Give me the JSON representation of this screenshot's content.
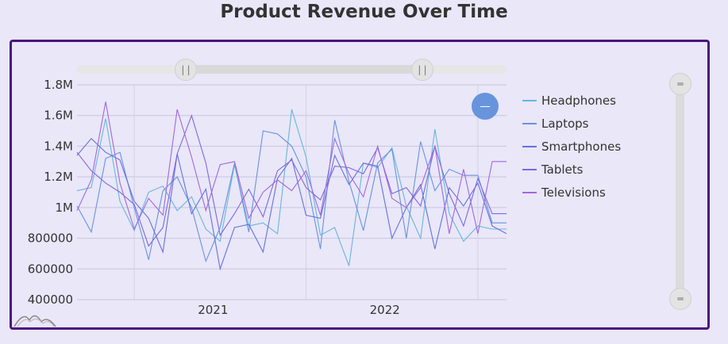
{
  "title": "Product Revenue Over Time",
  "chart_data": {
    "type": "line",
    "title": "Product Revenue Over Time",
    "xlabel": "",
    "ylabel": "",
    "x": [
      "2020-09",
      "2020-10",
      "2020-11",
      "2020-12",
      "2021-01",
      "2021-02",
      "2021-03",
      "2021-04",
      "2021-05",
      "2021-06",
      "2021-07",
      "2021-08",
      "2021-09",
      "2021-10",
      "2021-11",
      "2021-12",
      "2022-01",
      "2022-02",
      "2022-03",
      "2022-04",
      "2022-05",
      "2022-06",
      "2022-07",
      "2022-08",
      "2022-09",
      "2022-10",
      "2022-11",
      "2022-12",
      "2023-01",
      "2023-02",
      "2023-03"
    ],
    "xticks": [
      "2021",
      "2022"
    ],
    "ylim": [
      400000,
      1800000
    ],
    "yticks": [
      400000,
      600000,
      800000,
      1000000,
      1200000,
      1400000,
      1600000,
      1800000
    ],
    "ytick_labels": [
      "400000",
      "600000",
      "800000",
      "1M",
      "1.2M",
      "1.4M",
      "1.6M",
      "1.8M"
    ],
    "grid": true,
    "legend": "right",
    "series": [
      {
        "name": "Headphones",
        "color": "#67b7dc",
        "values": [
          1110000,
          1130000,
          1580000,
          1040000,
          850000,
          1100000,
          1140000,
          980000,
          1070000,
          860000,
          780000,
          1280000,
          880000,
          900000,
          830000,
          1640000,
          1330000,
          820000,
          870000,
          620000,
          1290000,
          1260000,
          1390000,
          1010000,
          800000,
          1510000,
          960000,
          780000,
          880000,
          860000,
          860000
        ]
      },
      {
        "name": "Laptops",
        "color": "#6794dc",
        "values": [
          1010000,
          840000,
          1320000,
          1360000,
          1000000,
          660000,
          1110000,
          1200000,
          1000000,
          650000,
          870000,
          1290000,
          840000,
          1500000,
          1480000,
          1400000,
          1200000,
          730000,
          1570000,
          1170000,
          850000,
          1290000,
          1380000,
          800000,
          1430000,
          1110000,
          1250000,
          1210000,
          1210000,
          900000,
          900000
        ]
      },
      {
        "name": "Smartphones",
        "color": "#6771dc",
        "values": [
          1340000,
          1450000,
          1360000,
          1310000,
          1040000,
          930000,
          710000,
          1350000,
          960000,
          1120000,
          600000,
          870000,
          890000,
          710000,
          1190000,
          1320000,
          950000,
          930000,
          1340000,
          1150000,
          1290000,
          1270000,
          800000,
          1000000,
          1150000,
          730000,
          1130000,
          1010000,
          1160000,
          880000,
          830000
        ]
      },
      {
        "name": "Tablets",
        "color": "#8067dc",
        "values": [
          1360000,
          1240000,
          1160000,
          1100000,
          1020000,
          750000,
          870000,
          1350000,
          1600000,
          1290000,
          820000,
          960000,
          1120000,
          940000,
          1240000,
          1310000,
          1130000,
          1050000,
          1270000,
          1260000,
          1220000,
          1390000,
          1090000,
          1130000,
          1010000,
          1400000,
          1090000,
          880000,
          1190000,
          960000,
          960000
        ]
      },
      {
        "name": "Televisions",
        "color": "#a367dc",
        "values": [
          980000,
          1180000,
          1690000,
          1160000,
          860000,
          1060000,
          950000,
          1640000,
          1330000,
          980000,
          1280000,
          1300000,
          930000,
          1100000,
          1180000,
          1110000,
          1240000,
          950000,
          1450000,
          1220000,
          1070000,
          1400000,
          1060000,
          1000000,
          1130000,
          1400000,
          830000,
          1250000,
          830000,
          1300000,
          1300000
        ]
      }
    ]
  },
  "icons": {
    "scroll_grip_h": "||",
    "scroll_grip_v": "═"
  }
}
